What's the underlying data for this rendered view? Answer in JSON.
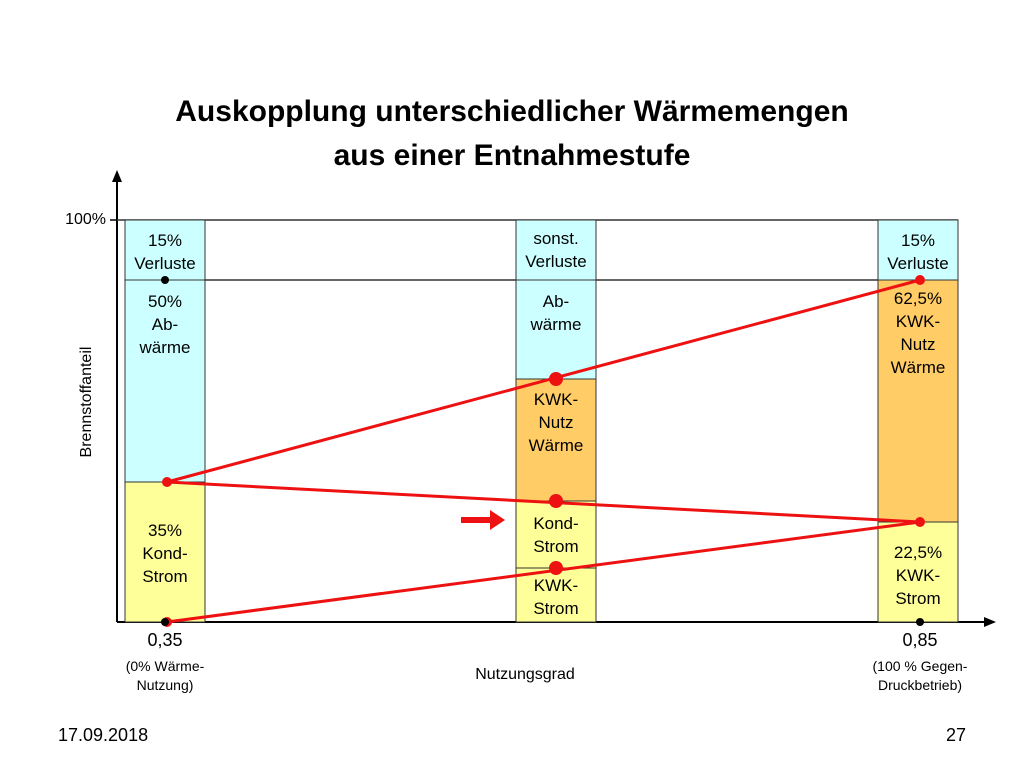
{
  "title_line1": "Auskopplung unterschiedlicher Wärmemengen",
  "title_line2": "aus einer Entnahmestufe",
  "axis": {
    "y_label": "Brennstoffanteil",
    "y_tick": "100%",
    "x_label": "Nutzungsgrad",
    "left_value": "0,35",
    "left_note_1": "(0% Wärme-",
    "left_note_2": "Nutzung)",
    "right_value": "0,85",
    "right_note_1": "(100 % Gegen-",
    "right_note_2": "Druckbetrieb)"
  },
  "bars": {
    "left": {
      "top": [
        "15%",
        "Verluste"
      ],
      "middle": [
        "50%",
        "Ab-",
        "wärme"
      ],
      "bottom": [
        "35%",
        "Kond-",
        "Strom"
      ]
    },
    "middle": {
      "top": [
        "sonst.",
        "Verluste"
      ],
      "abwaerme": [
        "Ab-",
        "wärme"
      ],
      "kwk_waerme": [
        "KWK-",
        "Nutz",
        "Wärme"
      ],
      "kond": [
        "Kond-",
        "Strom"
      ],
      "kwk_strom": [
        "KWK-",
        "Strom"
      ]
    },
    "right": {
      "top": [
        "15%",
        "Verluste"
      ],
      "middle": [
        "62,5%",
        "KWK-",
        "Nutz",
        "Wärme"
      ],
      "bottom": [
        "22,5%",
        "KWK-",
        "Strom"
      ]
    }
  },
  "colors": {
    "loss": "#ccffff",
    "waerme": "#ffcc66",
    "strom": "#ffff99",
    "lines": "#ee1111",
    "border": "#333333"
  },
  "footer": {
    "date": "17.09.2018",
    "page": "27"
  }
}
